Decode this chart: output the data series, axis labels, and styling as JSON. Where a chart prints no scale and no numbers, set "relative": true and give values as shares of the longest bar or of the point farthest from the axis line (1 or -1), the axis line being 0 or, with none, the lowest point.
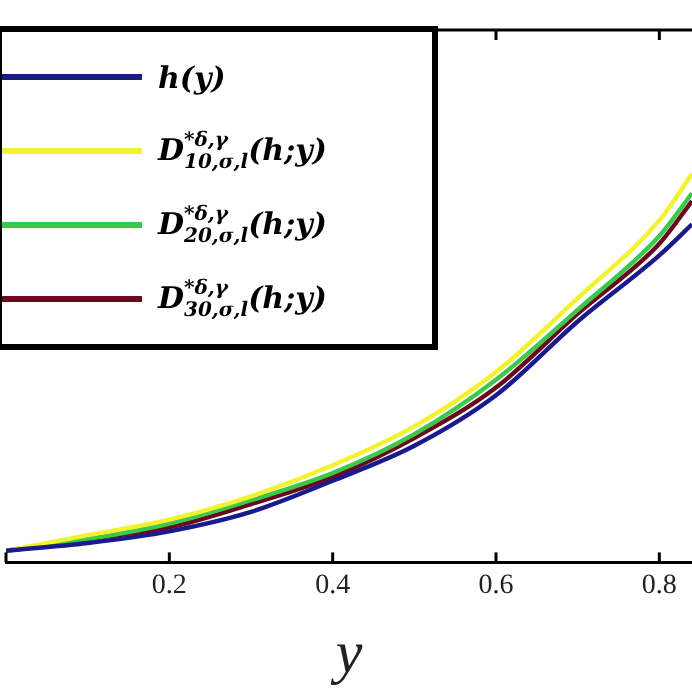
{
  "chart_data": {
    "type": "line",
    "relative": true,
    "xlabel": "y",
    "x": [
      0,
      0.1,
      0.2,
      0.3,
      0.4,
      0.5,
      0.6,
      0.7,
      0.8,
      0.84
    ],
    "xlim": [
      0,
      0.84
    ],
    "xticks": [
      {
        "value": 0,
        "label": null
      },
      0.2,
      0.4,
      0.6,
      0.8
    ],
    "legend": "top left",
    "grid": false,
    "marker": "none",
    "series": [
      {
        "name": "h(y)",
        "color": "#1a1a8c",
        "values": [
          0.03,
          0.05,
          0.08,
          0.13,
          0.21,
          0.3,
          0.43,
          0.62,
          0.79,
          0.87
        ]
      },
      {
        "name": "D$^{*δ,γ}$$_{10,σ,l}$(h;y)",
        "color": "#f2f230",
        "values": [
          0.03,
          0.07,
          0.11,
          0.17,
          0.25,
          0.35,
          0.49,
          0.68,
          0.88,
          1
        ]
      },
      {
        "name": "D$^{*δ,γ}$$_{20,σ,l}$(h;y)",
        "color": "#3cc84a",
        "values": [
          0.03,
          0.06,
          0.1,
          0.16,
          0.23,
          0.33,
          0.47,
          0.65,
          0.84,
          0.95
        ]
      },
      {
        "name": "D$^{*δ,γ}$$_{30,σ,l}$(h;y)",
        "color": "#6a0a1e",
        "values": [
          0.03,
          0.06,
          0.09,
          0.15,
          0.22,
          0.32,
          0.45,
          0.64,
          0.82,
          0.93
        ]
      }
    ]
  }
}
